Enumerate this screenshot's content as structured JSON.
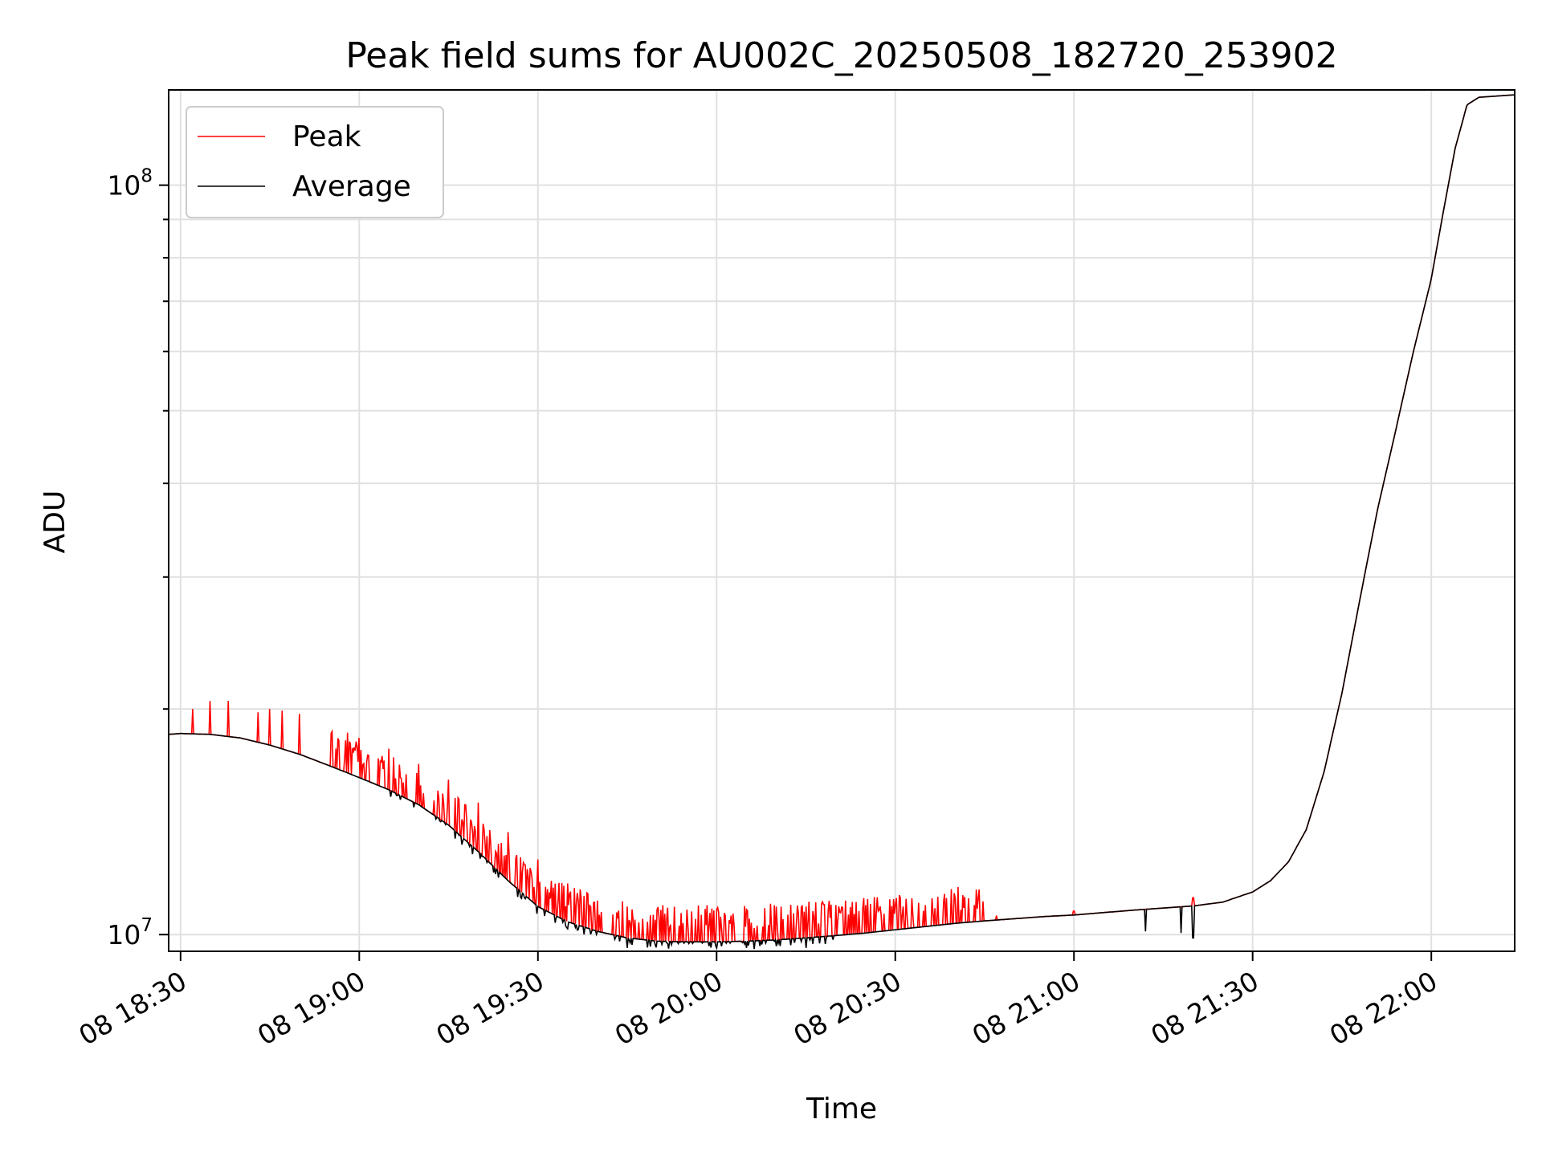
{
  "chart_data": {
    "type": "line",
    "title": "Peak field sums for AU002C_20250508_182720_253902",
    "xlabel": "Time",
    "ylabel": "ADU",
    "yscale": "log",
    "ylim": [
      9500000,
      134000000
    ],
    "xlim": [
      "2025-05-08 18:28",
      "2025-05-08 22:14"
    ],
    "x_ticks": [
      {
        "time": "18:30",
        "label": "08 18:30"
      },
      {
        "time": "19:00",
        "label": "08 19:00"
      },
      {
        "time": "19:30",
        "label": "08 19:30"
      },
      {
        "time": "20:00",
        "label": "08 20:00"
      },
      {
        "time": "20:30",
        "label": "08 20:30"
      },
      {
        "time": "21:00",
        "label": "08 21:00"
      },
      {
        "time": "21:30",
        "label": "08 21:30"
      },
      {
        "time": "22:00",
        "label": "08 22:00"
      }
    ],
    "y_ticks": [
      {
        "value": 10000000,
        "base": "10",
        "exp": "7"
      },
      {
        "value": 100000000,
        "base": "10",
        "exp": "8"
      }
    ],
    "grid": true,
    "legend_position": "upper-left",
    "series": [
      {
        "name": "Peak",
        "color": "#ff0000",
        "x": [
          "18:28",
          "18:30",
          "18:35",
          "18:40",
          "18:45",
          "18:50",
          "18:55",
          "19:00",
          "19:05",
          "19:10",
          "19:15",
          "19:20",
          "19:25",
          "19:30",
          "19:35",
          "19:40",
          "19:45",
          "19:50",
          "19:55",
          "20:00",
          "20:05",
          "20:10",
          "20:15",
          "20:20",
          "20:25",
          "20:30",
          "20:35",
          "20:40",
          "20:45",
          "20:50",
          "20:55",
          "21:00",
          "21:05",
          "21:10",
          "21:15",
          "21:20",
          "21:25",
          "21:30",
          "21:33",
          "21:36",
          "21:39",
          "21:42",
          "21:45",
          "21:48",
          "21:51",
          "21:54",
          "21:57",
          "22:00",
          "22:02",
          "22:04",
          "22:06",
          "22:08",
          "22:14"
        ],
        "y": [
          18500000,
          18550000,
          18500000,
          18300000,
          17900000,
          17400000,
          16800000,
          16200000,
          15600000,
          14900000,
          14000000,
          12900000,
          11800000,
          10900000,
          10400000,
          10100000,
          9900000,
          9800000,
          9780000,
          9780000,
          9800000,
          9840000,
          9900000,
          9970000,
          10050000,
          10150000,
          10250000,
          10350000,
          10430000,
          10500000,
          10570000,
          10620000,
          10700000,
          10780000,
          10850000,
          10920000,
          11050000,
          11400000,
          11800000,
          12500000,
          13800000,
          16500000,
          21000000,
          28000000,
          37000000,
          47000000,
          60000000,
          75000000,
          92000000,
          112000000,
          128000000,
          131000000,
          132000000
        ],
        "spikes": [
          {
            "x": "18:32",
            "y": 20000000
          },
          {
            "x": "18:35",
            "y": 20500000
          },
          {
            "x": "18:38",
            "y": 20500000
          },
          {
            "x": "18:43",
            "y": 19800000
          },
          {
            "x": "18:45",
            "y": 20000000
          },
          {
            "x": "18:47",
            "y": 19900000
          },
          {
            "x": "18:50",
            "y": 19700000
          },
          {
            "x": "18:58",
            "y": 18600000
          },
          {
            "x": "19:00",
            "y": 18300000
          },
          {
            "x": "19:05",
            "y": 17700000
          },
          {
            "x": "19:10",
            "y": 16900000
          },
          {
            "x": "19:15",
            "y": 16100000
          },
          {
            "x": "19:20",
            "y": 15000000
          },
          {
            "x": "19:25",
            "y": 13700000
          },
          {
            "x": "19:30",
            "y": 12600000
          },
          {
            "x": "19:35",
            "y": 11700000
          },
          {
            "x": "19:40",
            "y": 11100000
          },
          {
            "x": "19:45",
            "y": 10900000
          },
          {
            "x": "19:50",
            "y": 10800000
          },
          {
            "x": "19:55",
            "y": 10800000
          },
          {
            "x": "20:00",
            "y": 10800000
          },
          {
            "x": "20:05",
            "y": 10800000
          },
          {
            "x": "20:10",
            "y": 10900000
          },
          {
            "x": "20:15",
            "y": 10900000
          },
          {
            "x": "20:20",
            "y": 10950000
          },
          {
            "x": "20:25",
            "y": 10950000
          },
          {
            "x": "20:30",
            "y": 11000000
          },
          {
            "x": "20:35",
            "y": 10950000
          },
          {
            "x": "20:40",
            "y": 11200000
          },
          {
            "x": "20:47",
            "y": 10600000
          },
          {
            "x": "21:00",
            "y": 10750000
          },
          {
            "x": "21:20",
            "y": 11200000
          }
        ]
      },
      {
        "name": "Average",
        "color": "#000000",
        "x": [
          "18:28",
          "18:30",
          "18:35",
          "18:40",
          "18:45",
          "18:50",
          "18:55",
          "19:00",
          "19:05",
          "19:10",
          "19:15",
          "19:20",
          "19:25",
          "19:30",
          "19:35",
          "19:40",
          "19:45",
          "19:50",
          "19:55",
          "20:00",
          "20:05",
          "20:10",
          "20:15",
          "20:20",
          "20:25",
          "20:30",
          "20:35",
          "20:40",
          "20:45",
          "20:50",
          "20:55",
          "21:00",
          "21:05",
          "21:10",
          "21:15",
          "21:20",
          "21:25",
          "21:30",
          "21:33",
          "21:36",
          "21:39",
          "21:42",
          "21:45",
          "21:48",
          "21:51",
          "21:54",
          "21:57",
          "22:00",
          "22:02",
          "22:04",
          "22:06",
          "22:08",
          "22:14"
        ],
        "y": [
          18500000,
          18550000,
          18500000,
          18300000,
          17900000,
          17400000,
          16800000,
          16200000,
          15600000,
          14900000,
          14000000,
          12900000,
          11800000,
          10900000,
          10400000,
          10100000,
          9900000,
          9800000,
          9780000,
          9780000,
          9800000,
          9840000,
          9900000,
          9970000,
          10050000,
          10150000,
          10250000,
          10350000,
          10430000,
          10500000,
          10570000,
          10620000,
          10700000,
          10780000,
          10850000,
          10920000,
          11050000,
          11400000,
          11800000,
          12500000,
          13800000,
          16500000,
          21000000,
          28000000,
          37000000,
          47000000,
          60000000,
          75000000,
          92000000,
          112000000,
          128000000,
          131000000,
          132000000
        ],
        "dips": [
          {
            "x": "19:45",
            "y": 9600000
          },
          {
            "x": "19:52",
            "y": 9580000
          },
          {
            "x": "20:00",
            "y": 9600000
          },
          {
            "x": "20:10",
            "y": 9650000
          },
          {
            "x": "20:15",
            "y": 9600000
          },
          {
            "x": "21:12",
            "y": 10100000
          },
          {
            "x": "21:18",
            "y": 10050000
          },
          {
            "x": "21:20",
            "y": 9900000
          }
        ]
      }
    ]
  }
}
